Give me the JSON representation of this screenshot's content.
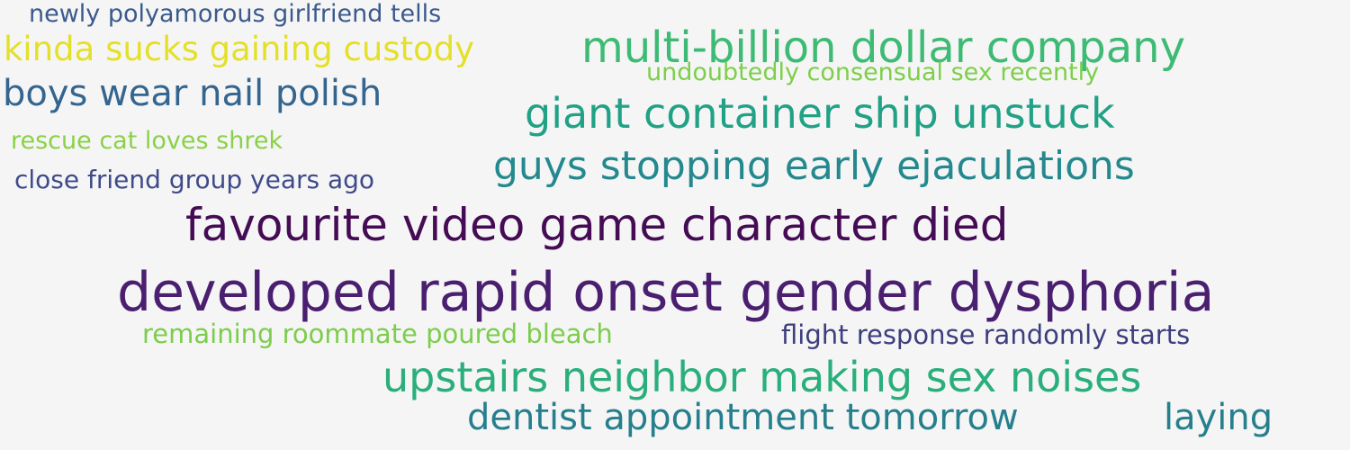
{
  "words": [
    {
      "text": "newly polyamorous girlfriend tells",
      "color": "#3b5a8c"
    },
    {
      "text": "kinda sucks gaining custody",
      "color": "#e4e02a"
    },
    {
      "text": "multi-billion dollar company",
      "color": "#3dbb74"
    },
    {
      "text": "undoubtedly consensual sex recently",
      "color": "#7dcf4a"
    },
    {
      "text": "boys wear nail polish",
      "color": "#33658f"
    },
    {
      "text": "giant container ship unstuck",
      "color": "#21a185"
    },
    {
      "text": "rescue cat loves shrek",
      "color": "#8ad147"
    },
    {
      "text": "close friend group years ago",
      "color": "#3f4a8a"
    },
    {
      "text": "guys stopping early ejaculations",
      "color": "#24898e"
    },
    {
      "text": "favourite video game character died",
      "color": "#450c55"
    },
    {
      "text": "developed rapid onset gender dysphoria",
      "color": "#4a1f70"
    },
    {
      "text": "remaining roommate poured bleach",
      "color": "#7ccd4c"
    },
    {
      "text": "flight response randomly starts",
      "color": "#3d3e7d"
    },
    {
      "text": "upstairs neighbor making sex noises",
      "color": "#2aaf7c"
    },
    {
      "text": "dentist appointment tomorrow",
      "color": "#267f8d"
    },
    {
      "text": "laying",
      "color": "#267f8d"
    }
  ]
}
